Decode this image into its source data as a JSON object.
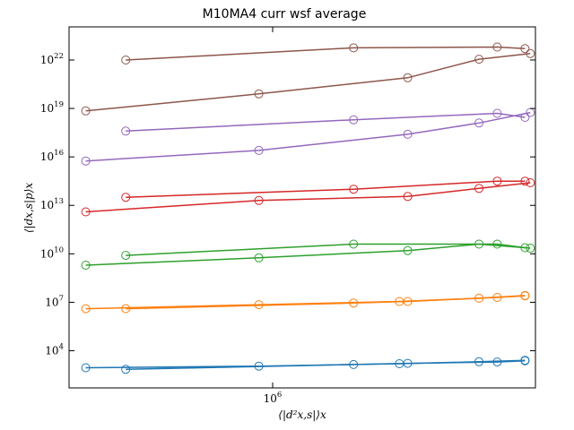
{
  "chart_data": {
    "type": "line",
    "title": "M10MA4 curr wsf average",
    "xlabel": "⟨|d²x,s|⟩x",
    "ylabel": "⟨|dx,s|p⟩x",
    "x_scale": "log",
    "y_scale": "log",
    "xlim": [
      470000,
      2650000
    ],
    "ylim_log10": [
      1.7,
      24.05
    ],
    "x_ticks": [
      {
        "value": 1000000,
        "base": "10",
        "exp": "6"
      }
    ],
    "y_ticks": [
      {
        "value_log10": 4,
        "base": "10",
        "exp": "4"
      },
      {
        "value_log10": 7,
        "base": "10",
        "exp": "7"
      },
      {
        "value_log10": 10,
        "base": "10",
        "exp": "10"
      },
      {
        "value_log10": 13,
        "base": "10",
        "exp": "13"
      },
      {
        "value_log10": 16,
        "base": "10",
        "exp": "16"
      },
      {
        "value_log10": 19,
        "base": "10",
        "exp": "19"
      },
      {
        "value_log10": 22,
        "base": "10",
        "exp": "22"
      }
    ],
    "grid": false,
    "legend": "none",
    "marker": "open circle",
    "series": [
      {
        "color": "#1f77b4",
        "x": [
          500000,
          950000,
          1600000,
          2150000,
          2550000
        ],
        "y_log10": [
          2.95,
          3.05,
          3.2,
          3.32,
          3.41
        ]
      },
      {
        "color": "#1f77b4",
        "x": [
          580000,
          1350000,
          1650000,
          2300000,
          2550000
        ],
        "y_log10": [
          2.85,
          3.15,
          3.22,
          3.3,
          3.38
        ]
      },
      {
        "color": "#ff7f0e",
        "x": [
          500000,
          950000,
          1600000,
          2150000,
          2550000
        ],
        "y_log10": [
          6.6,
          6.85,
          7.05,
          7.25,
          7.42
        ]
      },
      {
        "color": "#ff7f0e",
        "x": [
          580000,
          1350000,
          1650000,
          2300000,
          2550000
        ],
        "y_log10": [
          6.6,
          6.95,
          7.05,
          7.3,
          7.4
        ]
      },
      {
        "color": "#2ca02c",
        "x": [
          500000,
          950000,
          1650000,
          2150000,
          2600000
        ],
        "y_log10": [
          9.3,
          9.75,
          10.2,
          10.6,
          10.35
        ]
      },
      {
        "color": "#2ca02c",
        "x": [
          580000,
          1350000,
          2300000,
          2550000
        ],
        "y_log10": [
          9.9,
          10.6,
          10.6,
          10.38
        ]
      },
      {
        "color": "#d62728",
        "x": [
          500000,
          950000,
          1650000,
          2150000,
          2600000
        ],
        "y_log10": [
          12.6,
          13.3,
          13.55,
          14.05,
          14.4
        ]
      },
      {
        "color": "#d62728",
        "x": [
          580000,
          1350000,
          2300000,
          2550000
        ],
        "y_log10": [
          13.5,
          14.0,
          14.5,
          14.5
        ]
      },
      {
        "color": "#9467bd",
        "x": [
          500000,
          950000,
          1650000,
          2150000,
          2600000
        ],
        "y_log10": [
          15.75,
          16.4,
          17.4,
          18.1,
          18.75
        ]
      },
      {
        "color": "#9467bd",
        "x": [
          580000,
          1350000,
          2300000,
          2550000
        ],
        "y_log10": [
          17.6,
          18.3,
          18.7,
          18.45
        ]
      },
      {
        "color": "#8c564b",
        "x": [
          500000,
          950000,
          1650000,
          2150000,
          2600000
        ],
        "y_log10": [
          18.85,
          19.9,
          20.9,
          22.05,
          22.4
        ]
      },
      {
        "color": "#8c564b",
        "x": [
          580000,
          1350000,
          2300000,
          2550000
        ],
        "y_log10": [
          22.0,
          22.75,
          22.8,
          22.7
        ]
      }
    ]
  }
}
